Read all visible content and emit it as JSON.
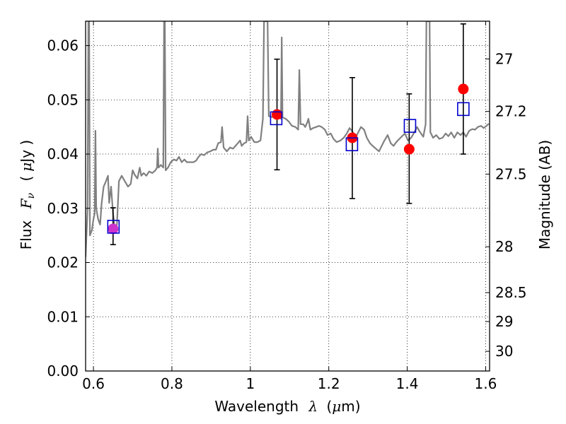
{
  "chart_data": {
    "type": "scatter",
    "xlabel": {
      "prefix": "Wavelength",
      "symbol": "λ",
      "unit_open": "(",
      "unit_mu": "μ",
      "unit_rest": "m)"
    },
    "ylabel": {
      "prefix": "Flux",
      "symbol": "F",
      "subscript": "ν",
      "unit_open": "(",
      "unit_mu": "μ",
      "unit_rest": "Jy )"
    },
    "y2label": "Magnitude (AB)",
    "xlim": [
      0.58,
      1.61
    ],
    "ylim": [
      0.0,
      0.0645
    ],
    "grid": true,
    "x_ticks": [
      {
        "value": 0.6,
        "label": "0.6"
      },
      {
        "value": 0.8,
        "label": "0.8"
      },
      {
        "value": 1.0,
        "label": "1"
      },
      {
        "value": 1.2,
        "label": "1.2"
      },
      {
        "value": 1.4,
        "label": "1.4"
      },
      {
        "value": 1.6,
        "label": "1.6"
      }
    ],
    "y_ticks": [
      {
        "value": 0.0,
        "label": "0.00"
      },
      {
        "value": 0.01,
        "label": "0.01"
      },
      {
        "value": 0.02,
        "label": "0.02"
      },
      {
        "value": 0.03,
        "label": "0.03"
      },
      {
        "value": 0.04,
        "label": "0.04"
      },
      {
        "value": 0.05,
        "label": "0.05"
      },
      {
        "value": 0.06,
        "label": "0.06"
      }
    ],
    "y2_ticks": [
      {
        "label": "27",
        "mag": 27.0
      },
      {
        "label": "27.2",
        "mag": 27.2
      },
      {
        "label": "27.5",
        "mag": 27.5
      },
      {
        "label": "28",
        "mag": 28.0
      },
      {
        "label": "28.5",
        "mag": 28.5
      },
      {
        "label": "29",
        "mag": 29.0
      },
      {
        "label": "30",
        "mag": 30.0
      }
    ],
    "spectrum": {
      "color": "#808080",
      "points": [
        [
          0.58,
          0.021
        ],
        [
          0.585,
          0.03
        ],
        [
          0.587,
          0.0645
        ],
        [
          0.589,
          0.0645
        ],
        [
          0.591,
          0.025
        ],
        [
          0.596,
          0.026
        ],
        [
          0.6,
          0.028
        ],
        [
          0.603,
          0.029
        ],
        [
          0.605,
          0.0443
        ],
        [
          0.607,
          0.03
        ],
        [
          0.612,
          0.028
        ],
        [
          0.617,
          0.027
        ],
        [
          0.621,
          0.031
        ],
        [
          0.626,
          0.034
        ],
        [
          0.632,
          0.035
        ],
        [
          0.637,
          0.036
        ],
        [
          0.64,
          0.031
        ],
        [
          0.645,
          0.034
        ],
        [
          0.65,
          0.029
        ],
        [
          0.655,
          0.026
        ],
        [
          0.66,
          0.027
        ],
        [
          0.665,
          0.035
        ],
        [
          0.672,
          0.036
        ],
        [
          0.68,
          0.035
        ],
        [
          0.688,
          0.034
        ],
        [
          0.695,
          0.0345
        ],
        [
          0.7,
          0.037
        ],
        [
          0.705,
          0.0362
        ],
        [
          0.712,
          0.0355
        ],
        [
          0.718,
          0.0375
        ],
        [
          0.722,
          0.036
        ],
        [
          0.728,
          0.0365
        ],
        [
          0.735,
          0.036
        ],
        [
          0.742,
          0.0368
        ],
        [
          0.75,
          0.0365
        ],
        [
          0.758,
          0.037
        ],
        [
          0.762,
          0.0375
        ],
        [
          0.764,
          0.041
        ],
        [
          0.766,
          0.0375
        ],
        [
          0.772,
          0.038
        ],
        [
          0.778,
          0.0375
        ],
        [
          0.78,
          0.0645
        ],
        [
          0.782,
          0.0645
        ],
        [
          0.784,
          0.037
        ],
        [
          0.79,
          0.0375
        ],
        [
          0.797,
          0.0385
        ],
        [
          0.805,
          0.039
        ],
        [
          0.812,
          0.0388
        ],
        [
          0.818,
          0.0395
        ],
        [
          0.825,
          0.0385
        ],
        [
          0.832,
          0.039
        ],
        [
          0.838,
          0.0385
        ],
        [
          0.846,
          0.0385
        ],
        [
          0.855,
          0.0385
        ],
        [
          0.862,
          0.0388
        ],
        [
          0.868,
          0.0395
        ],
        [
          0.875,
          0.04
        ],
        [
          0.882,
          0.0398
        ],
        [
          0.89,
          0.0403
        ],
        [
          0.898,
          0.0405
        ],
        [
          0.905,
          0.0408
        ],
        [
          0.912,
          0.0408
        ],
        [
          0.918,
          0.042
        ],
        [
          0.925,
          0.0422
        ],
        [
          0.928,
          0.045
        ],
        [
          0.932,
          0.0412
        ],
        [
          0.94,
          0.0405
        ],
        [
          0.948,
          0.0412
        ],
        [
          0.956,
          0.041
        ],
        [
          0.962,
          0.0415
        ],
        [
          0.968,
          0.042
        ],
        [
          0.974,
          0.0425
        ],
        [
          0.978,
          0.0415
        ],
        [
          0.984,
          0.042
        ],
        [
          0.99,
          0.0422
        ],
        [
          0.993,
          0.047
        ],
        [
          0.996,
          0.0425
        ],
        [
          1.002,
          0.0432
        ],
        [
          1.01,
          0.0422
        ],
        [
          1.018,
          0.0422
        ],
        [
          1.026,
          0.0425
        ],
        [
          1.032,
          0.0465
        ],
        [
          1.035,
          0.0645
        ],
        [
          1.044,
          0.0645
        ],
        [
          1.047,
          0.047
        ],
        [
          1.055,
          0.0468
        ],
        [
          1.062,
          0.0472
        ],
        [
          1.07,
          0.0475
        ],
        [
          1.078,
          0.0465
        ],
        [
          1.08,
          0.0615
        ],
        [
          1.082,
          0.0468
        ],
        [
          1.09,
          0.0465
        ],
        [
          1.098,
          0.046
        ],
        [
          1.106,
          0.0452
        ],
        [
          1.115,
          0.045
        ],
        [
          1.122,
          0.0445
        ],
        [
          1.125,
          0.0555
        ],
        [
          1.128,
          0.0455
        ],
        [
          1.135,
          0.0455
        ],
        [
          1.14,
          0.045
        ],
        [
          1.145,
          0.0458
        ],
        [
          1.148,
          0.0465
        ],
        [
          1.153,
          0.0445
        ],
        [
          1.16,
          0.0448
        ],
        [
          1.168,
          0.045
        ],
        [
          1.175,
          0.0452
        ],
        [
          1.182,
          0.045
        ],
        [
          1.19,
          0.0445
        ],
        [
          1.197,
          0.0435
        ],
        [
          1.205,
          0.0438
        ],
        [
          1.212,
          0.0428
        ],
        [
          1.22,
          0.0422
        ],
        [
          1.23,
          0.0425
        ],
        [
          1.238,
          0.043
        ],
        [
          1.246,
          0.0438
        ],
        [
          1.253,
          0.0448
        ],
        [
          1.26,
          0.0442
        ],
        [
          1.268,
          0.043
        ],
        [
          1.275,
          0.044
        ],
        [
          1.282,
          0.045
        ],
        [
          1.29,
          0.0445
        ],
        [
          1.297,
          0.043
        ],
        [
          1.305,
          0.042
        ],
        [
          1.312,
          0.0415
        ],
        [
          1.32,
          0.041
        ],
        [
          1.328,
          0.0405
        ],
        [
          1.335,
          0.0415
        ],
        [
          1.342,
          0.0425
        ],
        [
          1.35,
          0.0435
        ],
        [
          1.358,
          0.042
        ],
        [
          1.365,
          0.0415
        ],
        [
          1.372,
          0.0422
        ],
        [
          1.38,
          0.0428
        ],
        [
          1.387,
          0.0433
        ],
        [
          1.394,
          0.0438
        ],
        [
          1.402,
          0.0425
        ],
        [
          1.41,
          0.043
        ],
        [
          1.418,
          0.044
        ],
        [
          1.425,
          0.045
        ],
        [
          1.433,
          0.044
        ],
        [
          1.441,
          0.0432
        ],
        [
          1.447,
          0.0455
        ],
        [
          1.449,
          0.0645
        ],
        [
          1.457,
          0.0645
        ],
        [
          1.459,
          0.044
        ],
        [
          1.466,
          0.043
        ],
        [
          1.474,
          0.0435
        ],
        [
          1.482,
          0.0428
        ],
        [
          1.49,
          0.043
        ],
        [
          1.498,
          0.0438
        ],
        [
          1.505,
          0.0433
        ],
        [
          1.512,
          0.044
        ],
        [
          1.52,
          0.043
        ],
        [
          1.528,
          0.044
        ],
        [
          1.536,
          0.0435
        ],
        [
          1.543,
          0.044
        ],
        [
          1.55,
          0.0432
        ],
        [
          1.558,
          0.0443
        ],
        [
          1.566,
          0.0446
        ],
        [
          1.573,
          0.0445
        ],
        [
          1.58,
          0.045
        ],
        [
          1.588,
          0.0452
        ],
        [
          1.595,
          0.0448
        ],
        [
          1.602,
          0.0452
        ],
        [
          1.608,
          0.0456
        ]
      ]
    },
    "observed": {
      "color": "#ff0000",
      "points": [
        {
          "x": 0.65,
          "y": 0.0262
        },
        {
          "x": 1.068,
          "y": 0.0473
        },
        {
          "x": 1.26,
          "y": 0.043
        },
        {
          "x": 1.405,
          "y": 0.0409
        },
        {
          "x": 1.543,
          "y": 0.052
        }
      ],
      "errors": [
        {
          "x": 0.65,
          "low": 0.0233,
          "high": 0.0301
        },
        {
          "x": 1.068,
          "low": 0.0371,
          "high": 0.0575
        },
        {
          "x": 1.26,
          "low": 0.0318,
          "high": 0.0541
        },
        {
          "x": 1.405,
          "low": 0.0309,
          "high": 0.0511
        },
        {
          "x": 1.543,
          "low": 0.04,
          "high": 0.064
        }
      ]
    },
    "model": {
      "color": "#0000cc",
      "points": [
        {
          "x": 0.651,
          "y": 0.0266
        },
        {
          "x": 1.066,
          "y": 0.0466
        },
        {
          "x": 1.259,
          "y": 0.0418
        },
        {
          "x": 1.407,
          "y": 0.0452
        },
        {
          "x": 1.543,
          "y": 0.0483
        }
      ]
    },
    "overlap_color": "#cc33cc"
  }
}
